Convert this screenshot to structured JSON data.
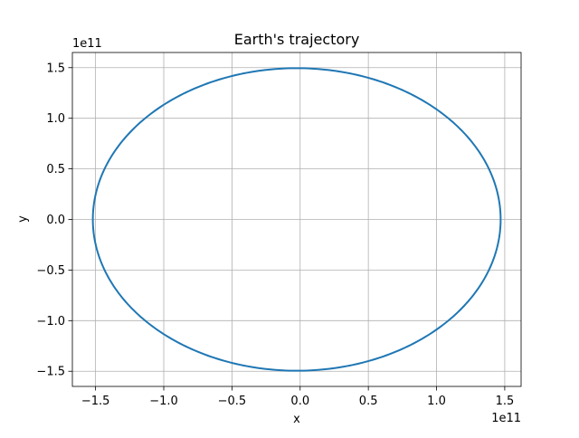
{
  "chart_data": {
    "type": "line",
    "title": "Earth's trajectory",
    "xlabel": "x",
    "ylabel": "y",
    "x_offset_label": "1e11",
    "y_offset_label": "1e11",
    "xlim": [
      -1.67,
      1.62
    ],
    "ylim": [
      -1.65,
      1.65
    ],
    "x_ticks": [
      -1.5,
      -1.0,
      -0.5,
      0.0,
      0.5,
      1.0,
      1.5
    ],
    "x_tick_labels": [
      "−1.5",
      "−1.0",
      "−0.5",
      "0.0",
      "0.5",
      "1.0",
      "1.5"
    ],
    "y_ticks": [
      -1.5,
      -1.0,
      -0.5,
      0.0,
      0.5,
      1.0,
      1.5
    ],
    "y_tick_labels": [
      "−1.5",
      "−1.0",
      "−0.5",
      "0.0",
      "0.5",
      "1.0",
      "1.5"
    ],
    "grid": true,
    "series": [
      {
        "color": "#1f77b4",
        "shape": "ellipse",
        "center": {
          "x": -0.025,
          "y": 0.0
        },
        "semi_axis_x": 1.495,
        "semi_axis_y": 1.495
      }
    ]
  }
}
